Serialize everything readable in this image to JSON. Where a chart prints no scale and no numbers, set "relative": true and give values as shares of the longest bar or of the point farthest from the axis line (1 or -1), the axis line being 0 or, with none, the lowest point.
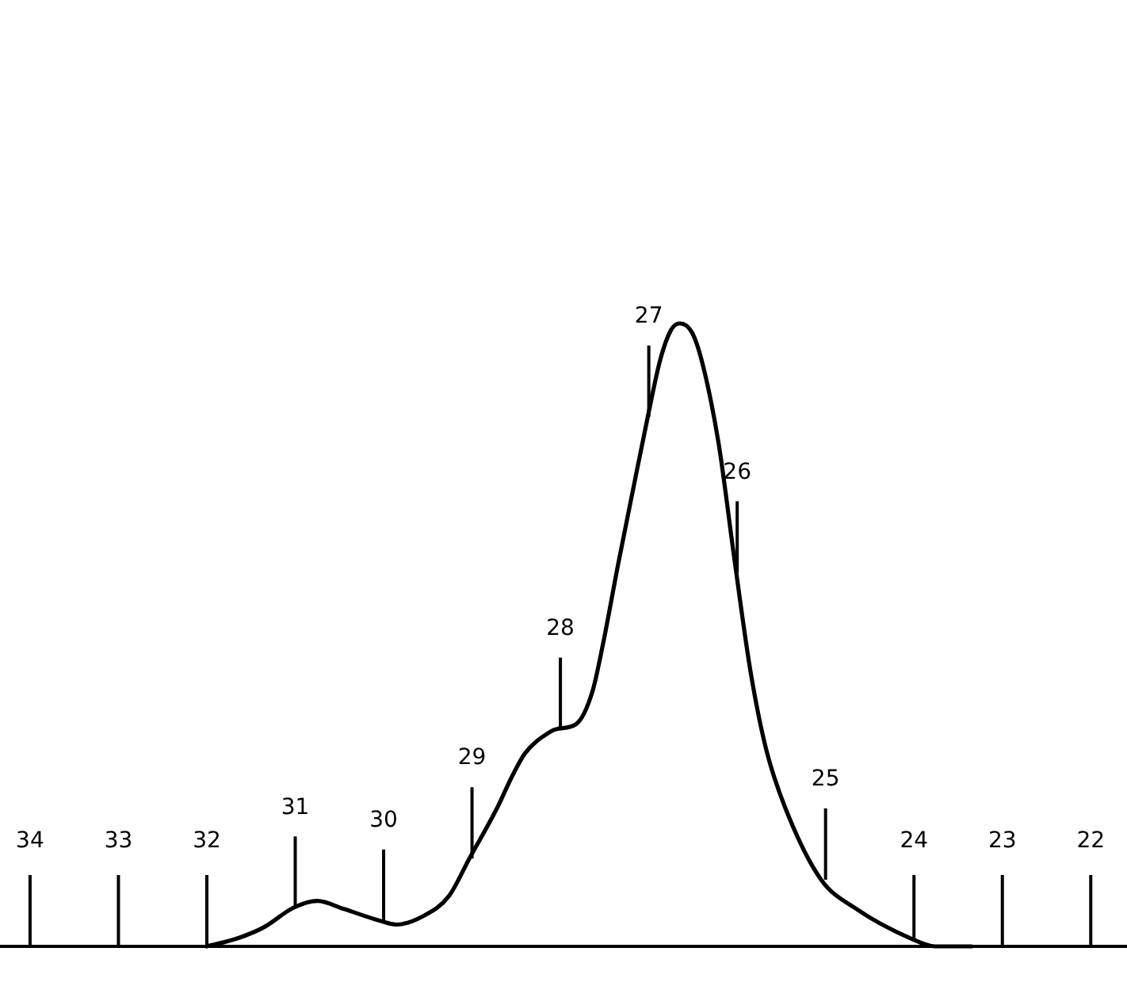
{
  "chart_data": {
    "type": "line",
    "relative": true,
    "color": "#000000",
    "x": [
      32,
      31.65,
      31.35,
      31.02,
      30.75,
      30.45,
      30.04,
      29.86,
      29.56,
      29.26,
      29.03,
      28.72,
      28.55,
      28.4,
      28.12,
      28.04,
      27.82,
      27.64,
      27.52,
      27.35,
      27.17,
      27.0,
      26.87,
      26.75,
      26.65,
      26.51,
      26.39,
      26.21,
      26.03,
      25.85,
      25.67,
      25.43,
      25.05,
      24.65,
      24.04,
      23.76,
      23.35
    ],
    "values": [
      0,
      0.013,
      0.031,
      0.062,
      0.073,
      0.06,
      0.041,
      0.035,
      0.048,
      0.081,
      0.141,
      0.221,
      0.272,
      0.31,
      0.344,
      0.349,
      0.357,
      0.408,
      0.484,
      0.611,
      0.739,
      0.858,
      0.942,
      0.989,
      1,
      0.985,
      0.934,
      0.807,
      0.62,
      0.442,
      0.315,
      0.213,
      0.107,
      0.06,
      0.013,
      0,
      0
    ],
    "xlim": [
      34.34,
      21.59
    ],
    "xticks": [
      34,
      33,
      32,
      24,
      23,
      22
    ],
    "ref_lines": [
      {
        "axis": "x",
        "value": 34
      },
      {
        "axis": "x",
        "value": 33
      },
      {
        "axis": "x",
        "value": 32
      },
      {
        "axis": "x",
        "value": 24
      },
      {
        "axis": "x",
        "value": 23
      },
      {
        "axis": "x",
        "value": 22
      }
    ],
    "annotations": [
      {
        "text": "31",
        "x": 31,
        "y": 0.062
      },
      {
        "text": "30",
        "x": 30,
        "y": 0.041
      },
      {
        "text": "29",
        "x": 29,
        "y": 0.141
      },
      {
        "text": "28",
        "x": 28,
        "y": 0.349
      },
      {
        "text": "27",
        "x": 27,
        "y": 0.85
      },
      {
        "text": "26",
        "x": 26,
        "y": 0.6
      },
      {
        "text": "25",
        "x": 25,
        "y": 0.107
      }
    ]
  }
}
